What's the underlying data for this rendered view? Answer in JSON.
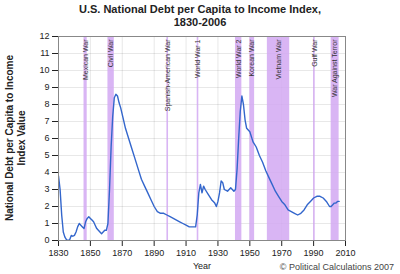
{
  "chart_data": {
    "type": "line",
    "title": "U.S. National Debt per Capita to Income Index, 1830-2006",
    "x_label": "Year",
    "y_label": "National Debt per Capita to Income Index Value",
    "credit": "© Political Calculations 2007",
    "color": "#3366cc",
    "x": [
      1830,
      1831,
      1832,
      1833,
      1834,
      1835,
      1836,
      1837,
      1838,
      1839,
      1840,
      1841,
      1842,
      1843,
      1844,
      1845,
      1846,
      1847,
      1848,
      1849,
      1850,
      1851,
      1852,
      1853,
      1854,
      1855,
      1856,
      1857,
      1858,
      1859,
      1860,
      1861,
      1862,
      1863,
      1864,
      1865,
      1866,
      1867,
      1868,
      1869,
      1870,
      1872,
      1874,
      1876,
      1878,
      1880,
      1882,
      1884,
      1886,
      1888,
      1890,
      1892,
      1894,
      1896,
      1898,
      1900,
      1902,
      1904,
      1906,
      1908,
      1910,
      1912,
      1914,
      1916,
      1917,
      1918,
      1919,
      1920,
      1921,
      1922,
      1924,
      1926,
      1928,
      1929,
      1930,
      1931,
      1932,
      1933,
      1934,
      1936,
      1938,
      1939,
      1940,
      1941,
      1942,
      1943,
      1944,
      1945,
      1946,
      1947,
      1948,
      1949,
      1950,
      1952,
      1954,
      1956,
      1958,
      1960,
      1962,
      1964,
      1966,
      1968,
      1970,
      1972,
      1974,
      1976,
      1978,
      1980,
      1982,
      1984,
      1986,
      1988,
      1990,
      1992,
      1994,
      1996,
      1998,
      2000,
      2001,
      2002,
      2003,
      2004,
      2005,
      2006
    ],
    "values": [
      3.8,
      3.0,
      1.5,
      0.5,
      0.2,
      0.05,
      0.0,
      0.05,
      0.3,
      0.25,
      0.3,
      0.5,
      0.8,
      1.0,
      0.9,
      0.8,
      0.7,
      1.1,
      1.3,
      1.4,
      1.3,
      1.2,
      1.1,
      0.9,
      0.7,
      0.6,
      0.5,
      0.4,
      0.5,
      0.6,
      0.6,
      1.0,
      3.0,
      5.5,
      7.3,
      8.4,
      8.6,
      8.5,
      8.1,
      7.8,
      7.4,
      6.6,
      6.0,
      5.4,
      4.8,
      4.2,
      3.6,
      3.2,
      2.8,
      2.4,
      2.0,
      1.7,
      1.6,
      1.6,
      1.5,
      1.4,
      1.3,
      1.2,
      1.1,
      1.0,
      0.9,
      0.8,
      0.8,
      0.8,
      1.5,
      2.8,
      3.3,
      2.8,
      3.2,
      3.0,
      2.7,
      2.4,
      2.2,
      2.0,
      2.3,
      2.8,
      3.5,
      3.4,
      3.0,
      2.9,
      3.1,
      3.0,
      2.9,
      3.0,
      4.2,
      6.0,
      7.6,
      8.5,
      8.0,
      7.1,
      6.6,
      6.5,
      6.4,
      5.8,
      5.5,
      5.0,
      4.6,
      4.1,
      3.7,
      3.3,
      2.9,
      2.6,
      2.3,
      2.1,
      1.8,
      1.7,
      1.6,
      1.5,
      1.6,
      1.8,
      2.1,
      2.3,
      2.5,
      2.6,
      2.6,
      2.5,
      2.3,
      2.0,
      2.0,
      2.1,
      2.2,
      2.2,
      2.3,
      2.3
    ],
    "xlim": [
      1830,
      2010
    ],
    "ylim": [
      0,
      12
    ],
    "xticks": [
      1830,
      1850,
      1870,
      1890,
      1910,
      1930,
      1950,
      1970,
      1990,
      2010
    ],
    "yticks": [
      0,
      1,
      2,
      3,
      4,
      5,
      6,
      7,
      8,
      9,
      10,
      11,
      12
    ],
    "grid": true,
    "shaded_periods": [
      {
        "label": "Mexican War",
        "start": 1846,
        "end": 1848
      },
      {
        "label": "Civil War",
        "start": 1861,
        "end": 1865
      },
      {
        "label": "Spanish-American War",
        "start": 1898,
        "end": 1899
      },
      {
        "label": "World War 1",
        "start": 1917,
        "end": 1918
      },
      {
        "label": "World War 2",
        "start": 1941,
        "end": 1945
      },
      {
        "label": "Korean War",
        "start": 1950,
        "end": 1953
      },
      {
        "label": "Vietnam War",
        "start": 1961,
        "end": 1975
      },
      {
        "label": "Gulf War",
        "start": 1990,
        "end": 1991
      },
      {
        "label": "War Against Terror",
        "start": 2001,
        "end": 2006
      }
    ]
  }
}
